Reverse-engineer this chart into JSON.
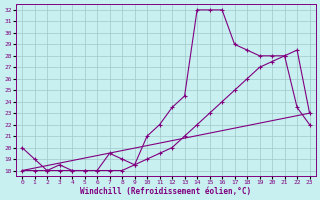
{
  "xlabel": "Windchill (Refroidissement éolien,°C)",
  "bg_color": "#c8f0f0",
  "line_color": "#800080",
  "grid_color": "#a0c8c8",
  "xlim": [
    -0.5,
    23.5
  ],
  "ylim": [
    17.5,
    32.5
  ],
  "xticks": [
    0,
    1,
    2,
    3,
    4,
    5,
    6,
    7,
    8,
    9,
    10,
    11,
    12,
    13,
    14,
    15,
    16,
    17,
    18,
    19,
    20,
    21,
    22,
    23
  ],
  "yticks": [
    18,
    19,
    20,
    21,
    22,
    23,
    24,
    25,
    26,
    27,
    28,
    29,
    30,
    31,
    32
  ],
  "line1_x": [
    0,
    1,
    2,
    3,
    4,
    5,
    6,
    7,
    8,
    9,
    10,
    11,
    12,
    13,
    14,
    15,
    16,
    17,
    18,
    19,
    20,
    21,
    22,
    23
  ],
  "line1_y": [
    20,
    19,
    18,
    18.5,
    18,
    18,
    18,
    19.5,
    19,
    18.5,
    21,
    22,
    23.5,
    24.5,
    32,
    32,
    32,
    29,
    28.5,
    28,
    28,
    28,
    23.5,
    22
  ],
  "line2_x": [
    0,
    1,
    2,
    3,
    4,
    5,
    6,
    7,
    8,
    9,
    10,
    11,
    12,
    13,
    14,
    15,
    16,
    17,
    18,
    19,
    20,
    21,
    22,
    23
  ],
  "line2_y": [
    18,
    18,
    18,
    18,
    18,
    18,
    18,
    18,
    18,
    18.5,
    19,
    19.5,
    20,
    21,
    22,
    23,
    24,
    25,
    26,
    27,
    27.5,
    28,
    28.5,
    23
  ],
  "line3_x": [
    0,
    23
  ],
  "line3_y": [
    18,
    23
  ]
}
